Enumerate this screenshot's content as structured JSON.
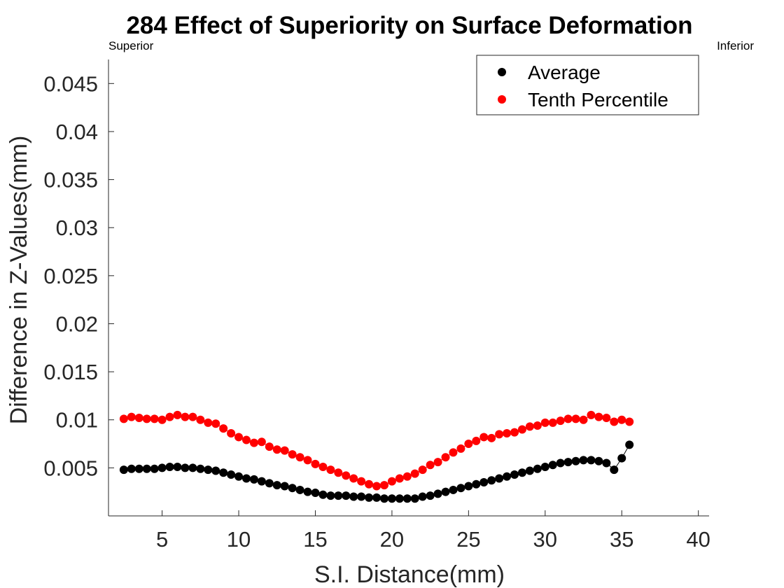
{
  "chart_data": {
    "type": "scatter",
    "title": "284  Effect of Superiority on Surface Deformation",
    "xlabel": "S.I. Distance(mm)",
    "ylabel": "Difference in Z-Values(mm)",
    "annotations": {
      "left": "Superior",
      "right": "Inferior"
    },
    "xlim": [
      1.5,
      40.7
    ],
    "ylim": [
      0,
      0.0475
    ],
    "xticks": [
      5,
      10,
      15,
      20,
      25,
      30,
      35,
      40
    ],
    "xtick_labels": [
      "5",
      "10",
      "15",
      "20",
      "25",
      "30",
      "35",
      "40"
    ],
    "yticks": [
      0.005,
      0.01,
      0.015,
      0.02,
      0.025,
      0.03,
      0.035,
      0.04,
      0.045
    ],
    "ytick_labels": [
      "0.005",
      "0.01",
      "0.015",
      "0.02",
      "0.025",
      "0.03",
      "0.035",
      "0.04",
      "0.045"
    ],
    "grid": false,
    "legend_position": "top-right",
    "series": [
      {
        "name": "Average",
        "color": "#000000",
        "x": [
          2.5,
          3.0,
          3.5,
          4.0,
          4.5,
          5.0,
          5.5,
          6.0,
          6.5,
          7.0,
          7.5,
          8.0,
          8.5,
          9.0,
          9.5,
          10.0,
          10.5,
          11.0,
          11.5,
          12.0,
          12.5,
          13.0,
          13.5,
          14.0,
          14.5,
          15.0,
          15.5,
          16.0,
          16.5,
          17.0,
          17.5,
          18.0,
          18.5,
          19.0,
          19.5,
          20.0,
          20.5,
          21.0,
          21.5,
          22.0,
          22.5,
          23.0,
          23.5,
          24.0,
          24.5,
          25.0,
          25.5,
          26.0,
          26.5,
          27.0,
          27.5,
          28.0,
          28.5,
          29.0,
          29.5,
          30.0,
          30.5,
          31.0,
          31.5,
          32.0,
          32.5,
          33.0,
          33.5,
          34.0,
          34.5,
          35.0,
          35.5
        ],
        "y": [
          0.0048,
          0.0049,
          0.0049,
          0.0049,
          0.0049,
          0.005,
          0.0051,
          0.0051,
          0.005,
          0.005,
          0.0049,
          0.0048,
          0.0047,
          0.0045,
          0.0043,
          0.0041,
          0.0039,
          0.0038,
          0.0036,
          0.0034,
          0.0032,
          0.0031,
          0.0029,
          0.0027,
          0.0025,
          0.0024,
          0.0022,
          0.0021,
          0.0021,
          0.0021,
          0.002,
          0.002,
          0.0019,
          0.0019,
          0.0018,
          0.0018,
          0.0018,
          0.0018,
          0.0018,
          0.002,
          0.0021,
          0.0023,
          0.0025,
          0.0027,
          0.0029,
          0.0031,
          0.0033,
          0.0035,
          0.0037,
          0.0039,
          0.0041,
          0.0043,
          0.0045,
          0.0047,
          0.0049,
          0.0051,
          0.0053,
          0.0055,
          0.0056,
          0.0057,
          0.0058,
          0.0058,
          0.0057,
          0.0055,
          0.0048,
          0.006,
          0.0074
        ]
      },
      {
        "name": "Tenth Percentile",
        "color": "#ff0000",
        "x": [
          2.5,
          3.0,
          3.5,
          4.0,
          4.5,
          5.0,
          5.5,
          6.0,
          6.5,
          7.0,
          7.5,
          8.0,
          8.5,
          9.0,
          9.5,
          10.0,
          10.5,
          11.0,
          11.5,
          12.0,
          12.5,
          13.0,
          13.5,
          14.0,
          14.5,
          15.0,
          15.5,
          16.0,
          16.5,
          17.0,
          17.5,
          18.0,
          18.5,
          19.0,
          19.5,
          20.0,
          20.5,
          21.0,
          21.5,
          22.0,
          22.5,
          23.0,
          23.5,
          24.0,
          24.5,
          25.0,
          25.5,
          26.0,
          26.5,
          27.0,
          27.5,
          28.0,
          28.5,
          29.0,
          29.5,
          30.0,
          30.5,
          31.0,
          31.5,
          32.0,
          32.5,
          33.0,
          33.5,
          34.0,
          34.5,
          35.0,
          35.5
        ],
        "y": [
          0.0101,
          0.0103,
          0.0102,
          0.0101,
          0.0101,
          0.01,
          0.0103,
          0.0105,
          0.0103,
          0.0103,
          0.01,
          0.0097,
          0.0096,
          0.0091,
          0.0086,
          0.0082,
          0.0079,
          0.0076,
          0.0077,
          0.0072,
          0.0069,
          0.0068,
          0.0064,
          0.0061,
          0.0058,
          0.0054,
          0.0051,
          0.0048,
          0.0045,
          0.0042,
          0.0039,
          0.0036,
          0.0033,
          0.0031,
          0.0032,
          0.0036,
          0.0039,
          0.0041,
          0.0044,
          0.0048,
          0.0053,
          0.0056,
          0.0061,
          0.0066,
          0.007,
          0.0075,
          0.0078,
          0.0082,
          0.0081,
          0.0085,
          0.0086,
          0.0087,
          0.009,
          0.0093,
          0.0094,
          0.0097,
          0.0097,
          0.0099,
          0.0101,
          0.0101,
          0.01,
          0.0105,
          0.0103,
          0.0102,
          0.0098,
          0.01,
          0.0098
        ]
      }
    ]
  }
}
